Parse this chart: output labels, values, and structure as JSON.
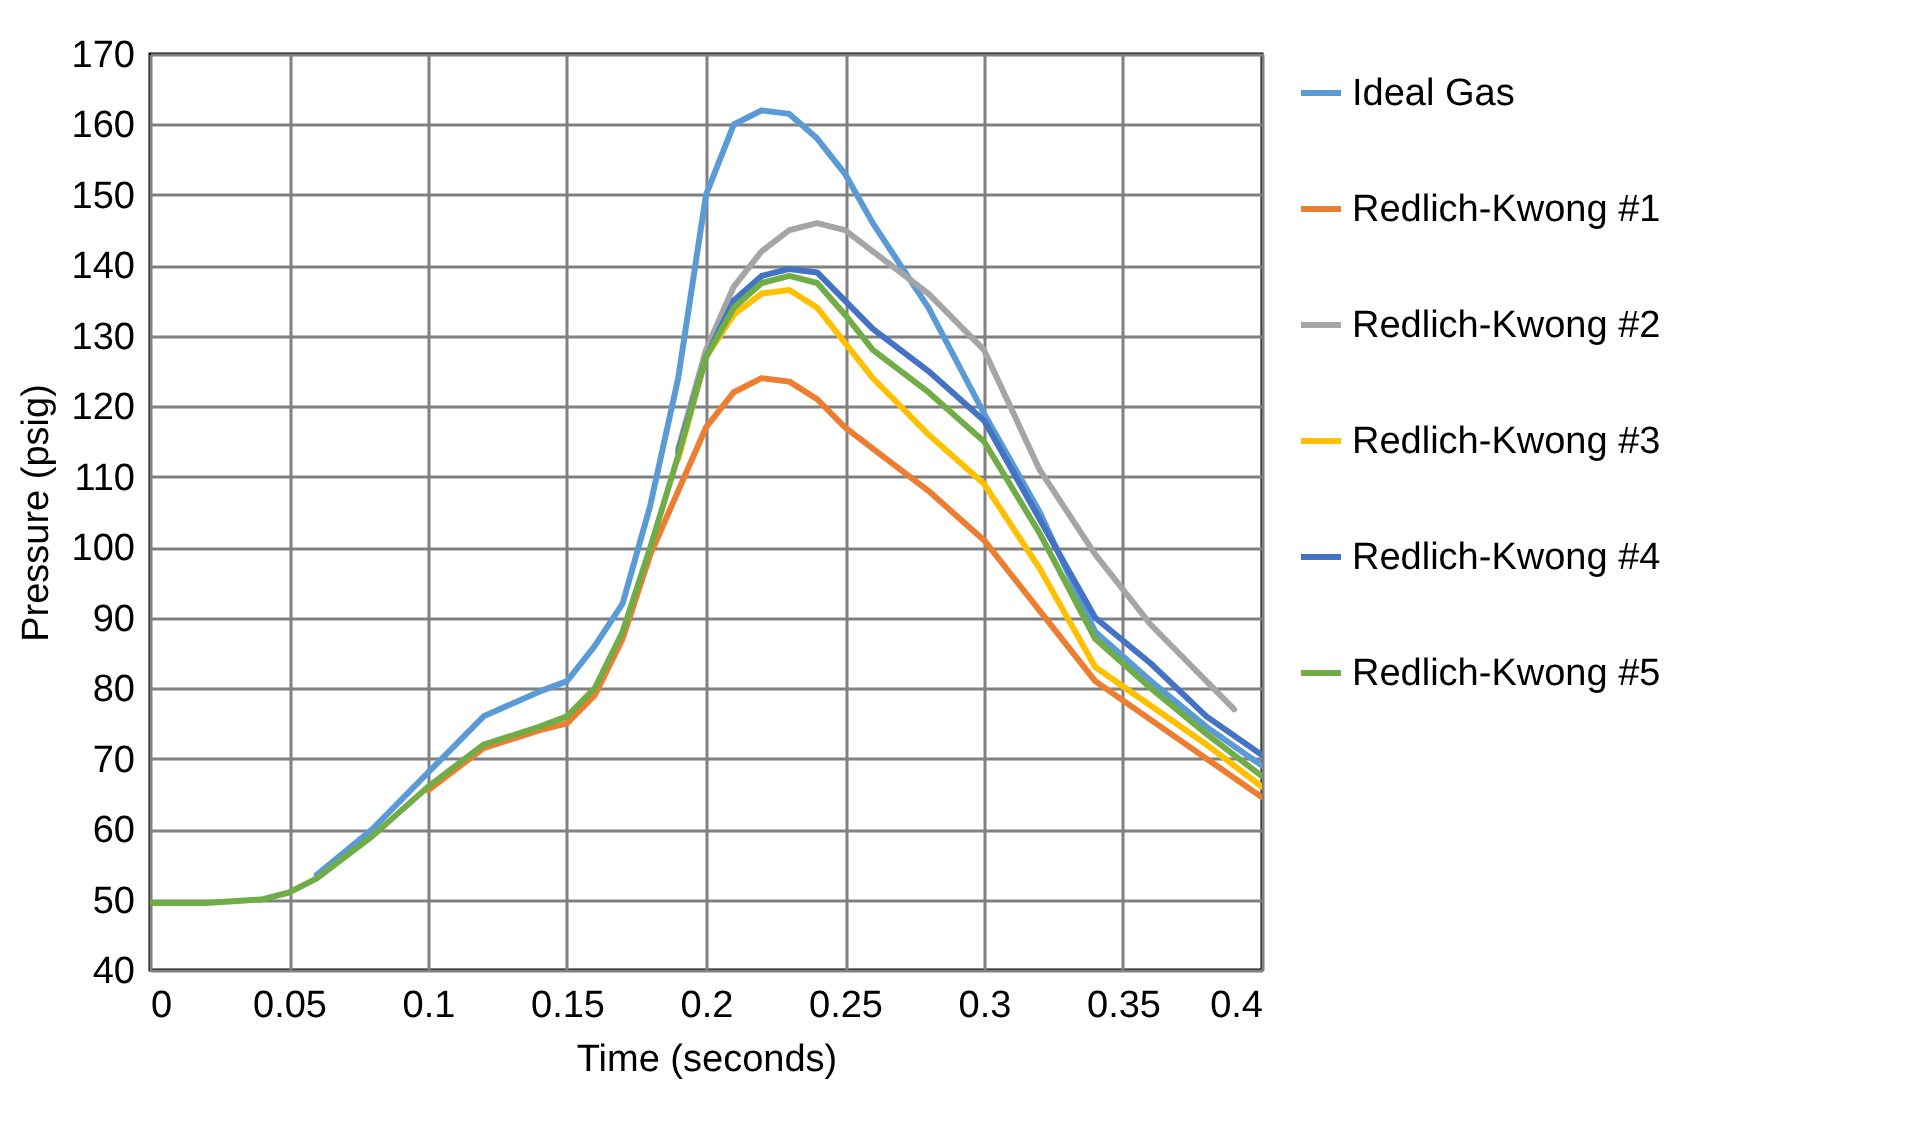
{
  "chart_data": {
    "type": "line",
    "xlabel": "Time (seconds)",
    "ylabel": "Pressure (psig)",
    "x": [
      0,
      0.02,
      0.04,
      0.05,
      0.06,
      0.08,
      0.1,
      0.12,
      0.14,
      0.15,
      0.16,
      0.17,
      0.18,
      0.19,
      0.2,
      0.21,
      0.22,
      0.23,
      0.24,
      0.25,
      0.26,
      0.28,
      0.3,
      0.32,
      0.34,
      0.36,
      0.38,
      0.4
    ],
    "series": [
      {
        "name": "Ideal Gas",
        "color": "#5b9bd5",
        "values": [
          null,
          null,
          null,
          null,
          53.5,
          60,
          68,
          76,
          79.5,
          81,
          86,
          92,
          106,
          124,
          150,
          160,
          162,
          161.5,
          158,
          153,
          146,
          134,
          119,
          105,
          88,
          81,
          74.5,
          69
        ]
      },
      {
        "name": "Redlich-Kwong #1",
        "color": "#ed7d31",
        "values": [
          null,
          null,
          null,
          null,
          null,
          null,
          65.5,
          71.5,
          74,
          75,
          79,
          87,
          99,
          108,
          117,
          122,
          124,
          123.5,
          121,
          117,
          114,
          108,
          101,
          91,
          81,
          75.5,
          70,
          64.5
        ]
      },
      {
        "name": "Redlich-Kwong #2",
        "color": "#a5a5a5",
        "x": [
          0.19,
          0.2,
          0.21,
          0.22,
          0.23,
          0.24,
          0.25,
          0.26,
          0.28,
          0.3,
          0.32,
          0.34,
          0.36,
          0.38,
          0.39
        ],
        "values": [
          114,
          128,
          137,
          142,
          145,
          146,
          145,
          142,
          136,
          128,
          111,
          99,
          89,
          81,
          77
        ]
      },
      {
        "name": "Redlich-Kwong #3",
        "color": "#ffc000",
        "values": [
          null,
          null,
          null,
          null,
          null,
          null,
          null,
          null,
          null,
          null,
          null,
          null,
          null,
          112.5,
          127,
          133,
          136,
          136.5,
          134,
          129,
          124,
          116,
          109,
          97,
          83,
          77.5,
          72,
          66
        ]
      },
      {
        "name": "Redlich-Kwong #4",
        "color": "#4472c4",
        "values": [
          null,
          null,
          null,
          null,
          null,
          null,
          null,
          null,
          null,
          null,
          null,
          null,
          null,
          113.5,
          127,
          135,
          138.5,
          139.5,
          139,
          135,
          131,
          125,
          118,
          104,
          90,
          83.5,
          76,
          70.5
        ]
      },
      {
        "name": "Redlich-Kwong #5",
        "color": "#70ad47",
        "values": [
          49.5,
          49.5,
          50,
          51,
          53,
          59,
          66,
          72,
          74.5,
          76,
          80,
          88,
          100,
          113,
          127,
          134,
          137.5,
          138.5,
          137.5,
          133,
          128,
          122,
          115,
          102,
          87,
          80,
          73.5,
          67.5
        ]
      }
    ],
    "xlim": [
      0,
      0.4
    ],
    "xticks": [
      0,
      0.05,
      0.1,
      0.15,
      0.2,
      0.25,
      0.3,
      0.35,
      0.4
    ],
    "ylim": [
      40,
      170
    ],
    "yticks": [
      40,
      50,
      60,
      70,
      80,
      90,
      100,
      110,
      120,
      130,
      140,
      150,
      160,
      170
    ],
    "grid": true,
    "legend": "right",
    "marker": "none",
    "line_style": "solid"
  }
}
